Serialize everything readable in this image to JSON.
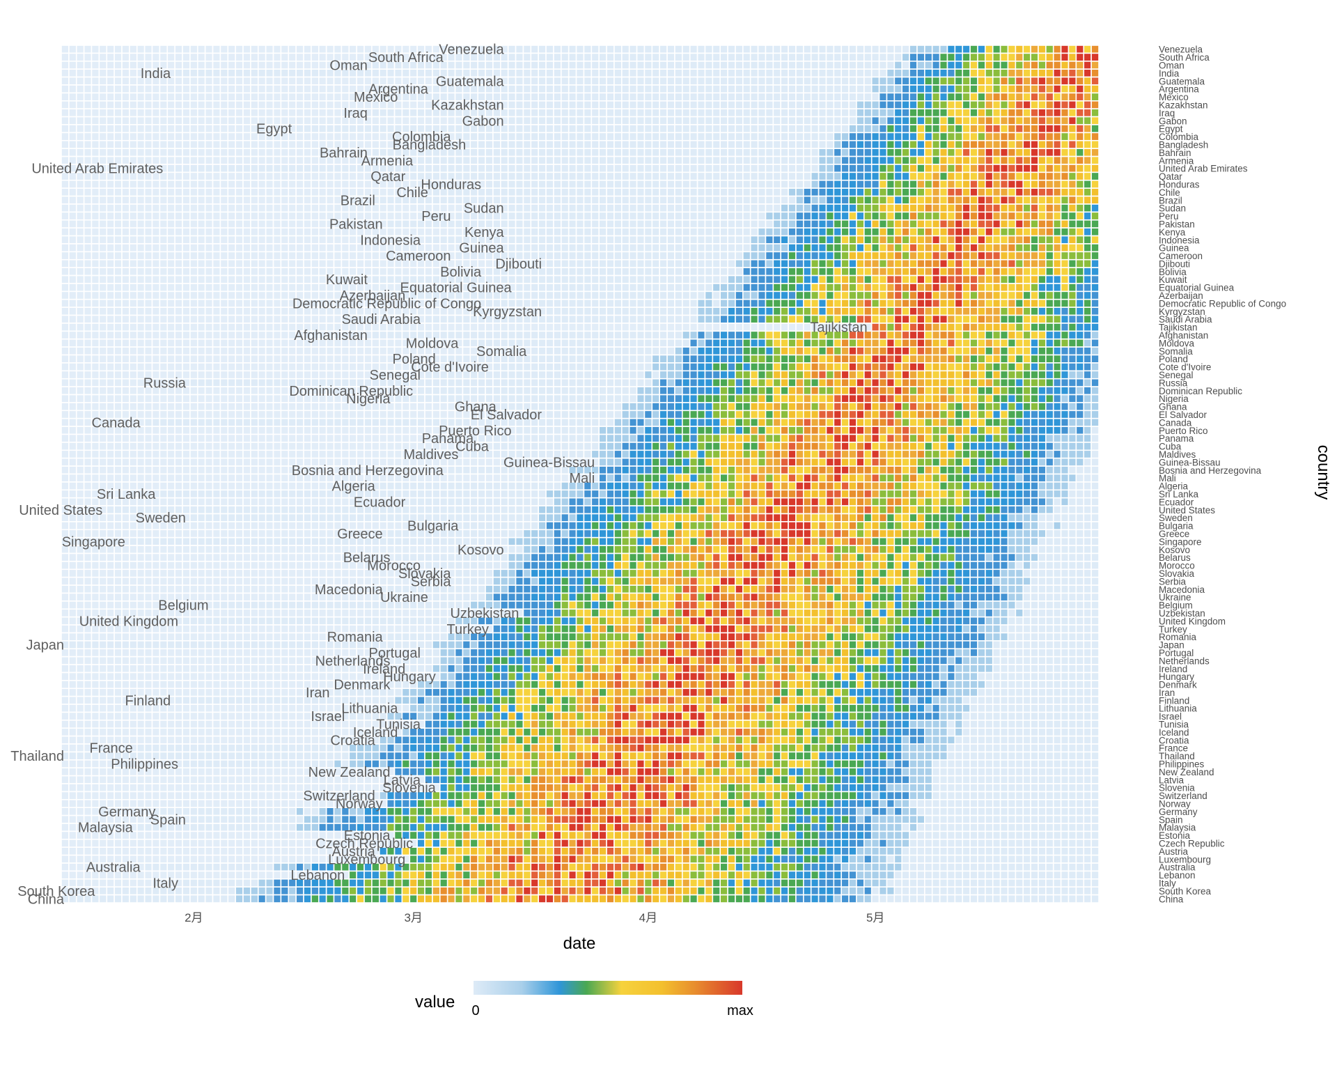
{
  "chart_data": {
    "type": "heatmap",
    "title": "",
    "xlabel": "date",
    "ylabel": "country",
    "x_ticks": [
      "2月",
      "3月",
      "4月",
      "5月"
    ],
    "x_tick_dates": [
      "2020-02-01",
      "2020-03-01",
      "2020-04-01",
      "2020-05-01"
    ],
    "x_range": [
      "2020-01-15",
      "2020-05-30"
    ],
    "grid": false,
    "legend": {
      "title": "value",
      "min_label": "0",
      "max_label": "max",
      "position": "bottom",
      "colors": [
        "#deebf7",
        "#a9cfea",
        "#4393d3",
        "#2f96d8",
        "#4aa853",
        "#8bbd3c",
        "#f6d23d",
        "#f3c02e",
        "#eda93a",
        "#e88f2e",
        "#e35f3a",
        "#d8382b"
      ]
    },
    "countries": [
      {
        "name": "Venezuela",
        "start": "2020-03-14"
      },
      {
        "name": "South Africa",
        "start": "2020-03-06"
      },
      {
        "name": "Oman",
        "start": "2020-02-25"
      },
      {
        "name": "India",
        "start": "2020-01-30"
      },
      {
        "name": "Guatemala",
        "start": "2020-03-14"
      },
      {
        "name": "Argentina",
        "start": "2020-03-04"
      },
      {
        "name": "Mexico",
        "start": "2020-02-29"
      },
      {
        "name": "Kazakhstan",
        "start": "2020-03-14"
      },
      {
        "name": "Iraq",
        "start": "2020-02-25"
      },
      {
        "name": "Gabon",
        "start": "2020-03-14"
      },
      {
        "name": "Egypt",
        "start": "2020-02-15"
      },
      {
        "name": "Colombia",
        "start": "2020-03-07"
      },
      {
        "name": "Bangladesh",
        "start": "2020-03-09"
      },
      {
        "name": "Bahrain",
        "start": "2020-02-25"
      },
      {
        "name": "Armenia",
        "start": "2020-03-02"
      },
      {
        "name": "United Arab Emirates",
        "start": "2020-01-29"
      },
      {
        "name": "Qatar",
        "start": "2020-03-01"
      },
      {
        "name": "Honduras",
        "start": "2020-03-11"
      },
      {
        "name": "Chile",
        "start": "2020-03-04"
      },
      {
        "name": "Brazil",
        "start": "2020-02-26"
      },
      {
        "name": "Sudan",
        "start": "2020-03-14"
      },
      {
        "name": "Peru",
        "start": "2020-03-07"
      },
      {
        "name": "Pakistan",
        "start": "2020-02-27"
      },
      {
        "name": "Kenya",
        "start": "2020-03-14"
      },
      {
        "name": "Indonesia",
        "start": "2020-03-03"
      },
      {
        "name": "Guinea",
        "start": "2020-03-14"
      },
      {
        "name": "Cameroon",
        "start": "2020-03-07"
      },
      {
        "name": "Djibouti",
        "start": "2020-03-19"
      },
      {
        "name": "Bolivia",
        "start": "2020-03-11"
      },
      {
        "name": "Kuwait",
        "start": "2020-02-25"
      },
      {
        "name": "Equatorial Guinea",
        "start": "2020-03-15"
      },
      {
        "name": "Azerbaijan",
        "start": "2020-03-01"
      },
      {
        "name": "Democratic Republic of Congo",
        "start": "2020-03-11"
      },
      {
        "name": "Kyrgyzstan",
        "start": "2020-03-19"
      },
      {
        "name": "Saudi Arabia",
        "start": "2020-03-03"
      },
      {
        "name": "Tajikistan",
        "start": "2020-05-01"
      },
      {
        "name": "Afghanistan",
        "start": "2020-02-25"
      },
      {
        "name": "Moldova",
        "start": "2020-03-08"
      },
      {
        "name": "Somalia",
        "start": "2020-03-17"
      },
      {
        "name": "Poland",
        "start": "2020-03-05"
      },
      {
        "name": "Cote d'Ivoire",
        "start": "2020-03-12"
      },
      {
        "name": "Senegal",
        "start": "2020-03-03"
      },
      {
        "name": "Russia",
        "start": "2020-02-01"
      },
      {
        "name": "Dominican Republic",
        "start": "2020-03-02"
      },
      {
        "name": "Nigeria",
        "start": "2020-02-28"
      },
      {
        "name": "Ghana",
        "start": "2020-03-13"
      },
      {
        "name": "El Salvador",
        "start": "2020-03-19"
      },
      {
        "name": "Canada",
        "start": "2020-01-26"
      },
      {
        "name": "Puerto Rico",
        "start": "2020-03-15"
      },
      {
        "name": "Panama",
        "start": "2020-03-10"
      },
      {
        "name": "Cuba",
        "start": "2020-03-12"
      },
      {
        "name": "Maldives",
        "start": "2020-03-08"
      },
      {
        "name": "Guinea-Bissau",
        "start": "2020-03-26"
      },
      {
        "name": "Bosnia and Herzegovina",
        "start": "2020-03-06"
      },
      {
        "name": "Mali",
        "start": "2020-03-26"
      },
      {
        "name": "Algeria",
        "start": "2020-02-26"
      },
      {
        "name": "Sri Lanka",
        "start": "2020-01-28"
      },
      {
        "name": "Ecuador",
        "start": "2020-03-01"
      },
      {
        "name": "United States",
        "start": "2020-01-21"
      },
      {
        "name": "Sweden",
        "start": "2020-02-01"
      },
      {
        "name": "Bulgaria",
        "start": "2020-03-08"
      },
      {
        "name": "Greece",
        "start": "2020-02-27"
      },
      {
        "name": "Singapore",
        "start": "2020-01-24"
      },
      {
        "name": "Kosovo",
        "start": "2020-03-14"
      },
      {
        "name": "Belarus",
        "start": "2020-02-28"
      },
      {
        "name": "Morocco",
        "start": "2020-03-03"
      },
      {
        "name": "Slovakia",
        "start": "2020-03-07"
      },
      {
        "name": "Serbia",
        "start": "2020-03-07"
      },
      {
        "name": "Macedonia",
        "start": "2020-02-27"
      },
      {
        "name": "Ukraine",
        "start": "2020-03-04"
      },
      {
        "name": "Belgium",
        "start": "2020-02-04"
      },
      {
        "name": "Uzbekistan",
        "start": "2020-03-16"
      },
      {
        "name": "United Kingdom",
        "start": "2020-01-31"
      },
      {
        "name": "Turkey",
        "start": "2020-03-12"
      },
      {
        "name": "Romania",
        "start": "2020-02-27"
      },
      {
        "name": "Japan",
        "start": "2020-01-15"
      },
      {
        "name": "Portugal",
        "start": "2020-03-03"
      },
      {
        "name": "Netherlands",
        "start": "2020-02-28"
      },
      {
        "name": "Ireland",
        "start": "2020-03-01"
      },
      {
        "name": "Hungary",
        "start": "2020-03-05"
      },
      {
        "name": "Denmark",
        "start": "2020-02-28"
      },
      {
        "name": "Iran",
        "start": "2020-02-20"
      },
      {
        "name": "Finland",
        "start": "2020-01-30"
      },
      {
        "name": "Lithuania",
        "start": "2020-02-29"
      },
      {
        "name": "Israel",
        "start": "2020-02-22"
      },
      {
        "name": "Tunisia",
        "start": "2020-03-03"
      },
      {
        "name": "Iceland",
        "start": "2020-02-29"
      },
      {
        "name": "Croatia",
        "start": "2020-02-26"
      },
      {
        "name": "France",
        "start": "2020-01-25"
      },
      {
        "name": "Thailand",
        "start": "2020-01-15"
      },
      {
        "name": "Philippines",
        "start": "2020-01-31"
      },
      {
        "name": "New Zealand",
        "start": "2020-02-28"
      },
      {
        "name": "Latvia",
        "start": "2020-03-03"
      },
      {
        "name": "Slovenia",
        "start": "2020-03-05"
      },
      {
        "name": "Switzerland",
        "start": "2020-02-26"
      },
      {
        "name": "Norway",
        "start": "2020-02-27"
      },
      {
        "name": "Germany",
        "start": "2020-01-28"
      },
      {
        "name": "Spain",
        "start": "2020-02-01"
      },
      {
        "name": "Malaysia",
        "start": "2020-01-25"
      },
      {
        "name": "Estonia",
        "start": "2020-02-28"
      },
      {
        "name": "Czech Republic",
        "start": "2020-03-02"
      },
      {
        "name": "Austria",
        "start": "2020-02-26"
      },
      {
        "name": "Luxembourg",
        "start": "2020-03-01"
      },
      {
        "name": "Australia",
        "start": "2020-01-26"
      },
      {
        "name": "Lebanon",
        "start": "2020-02-22"
      },
      {
        "name": "Italy",
        "start": "2020-01-31"
      },
      {
        "name": "South Korea",
        "start": "2020-01-20"
      },
      {
        "name": "China",
        "start": "2020-01-15"
      }
    ]
  }
}
